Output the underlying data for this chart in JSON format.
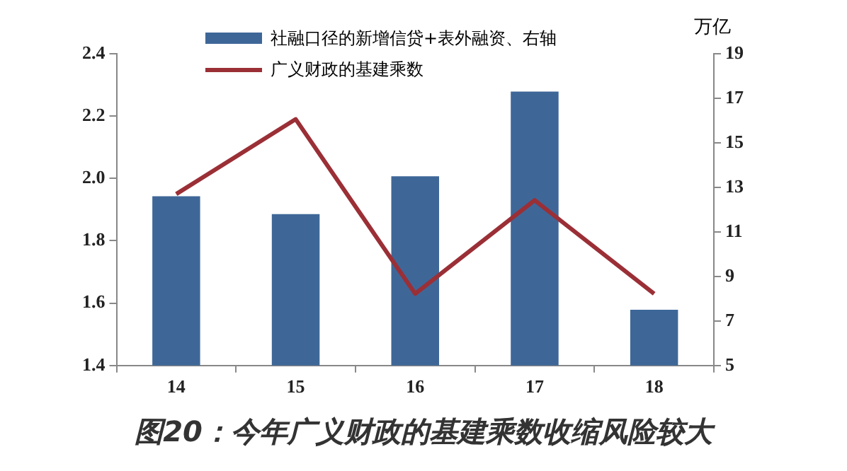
{
  "chart_data": {
    "type": "bar",
    "categories": [
      "14",
      "15",
      "16",
      "17",
      "18"
    ],
    "series": [
      {
        "name": "社融口径的新增信贷+表外融资、右轴",
        "axis": "y2",
        "color": "#3e6798",
        "values": [
          12.6,
          11.8,
          13.5,
          17.3,
          7.5
        ]
      },
      {
        "name": "广义财政的基建乘数",
        "type": "line",
        "color": "#9b2f36",
        "values": [
          1.95,
          2.19,
          1.63,
          1.93,
          1.63
        ]
      }
    ],
    "ylim": [
      1.4,
      2.4
    ],
    "yticks": [
      {
        "value": 1.4,
        "label": "1.4"
      },
      {
        "value": 1.6,
        "label": "1.6"
      },
      {
        "value": 1.8,
        "label": "1.8"
      },
      {
        "value": 2.0,
        "label": "2.0"
      },
      {
        "value": 2.2,
        "label": "2.2"
      },
      {
        "value": 2.4,
        "label": "2.4"
      }
    ],
    "y2lim": [
      5,
      19
    ],
    "y2ticks": [
      5,
      7,
      9,
      11,
      13,
      15,
      17,
      19
    ],
    "y2label": "万亿",
    "legend": "top",
    "grid": false,
    "annotations": [
      "图20：今年广义财政的基建乘数收缩风险较大"
    ]
  }
}
